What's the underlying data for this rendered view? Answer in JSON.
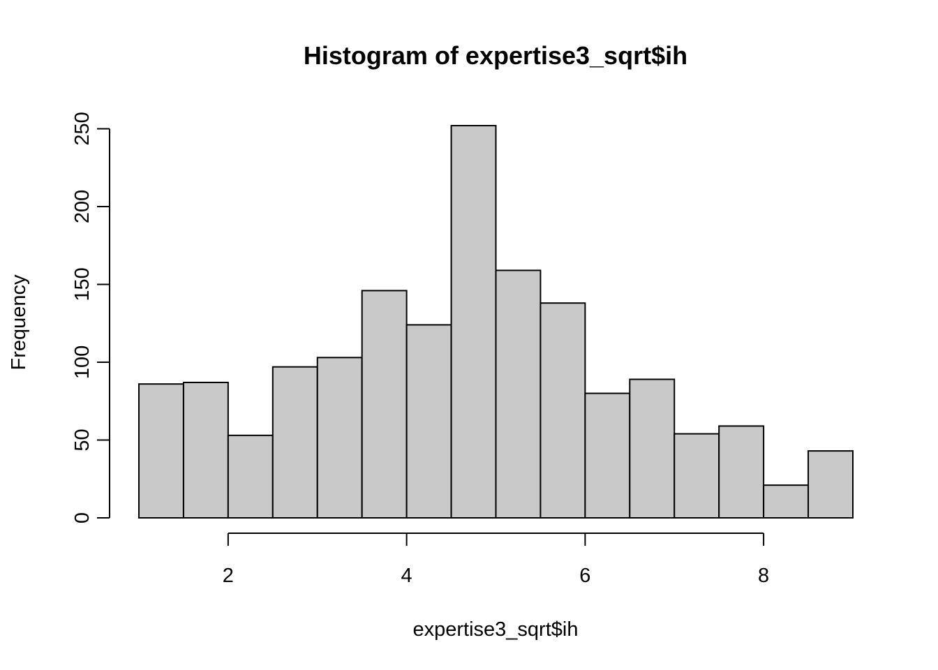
{
  "chart_data": {
    "type": "bar",
    "title": "Histogram of expertise3_sqrt$ih",
    "xlabel": "expertise3_sqrt$ih",
    "ylabel": "Frequency",
    "bin_edges": [
      1.0,
      1.5,
      2.0,
      2.5,
      3.0,
      3.5,
      4.0,
      4.5,
      5.0,
      5.5,
      6.0,
      6.5,
      7.0,
      7.5,
      8.0,
      8.5,
      9.0
    ],
    "values": [
      86,
      87,
      53,
      97,
      103,
      146,
      124,
      252,
      159,
      138,
      80,
      89,
      54,
      59,
      21,
      43
    ],
    "xlim": [
      1.0,
      9.0
    ],
    "ylim": [
      0,
      252
    ],
    "x_ticks": [
      2,
      4,
      6,
      8
    ],
    "x_tick_labels": [
      "2",
      "4",
      "6",
      "8"
    ],
    "y_ticks": [
      0,
      50,
      100,
      150,
      200,
      250
    ],
    "y_tick_labels": [
      "0",
      "50",
      "100",
      "150",
      "200",
      "250"
    ],
    "bar_fill": "#c9c9c9",
    "grid": false
  }
}
